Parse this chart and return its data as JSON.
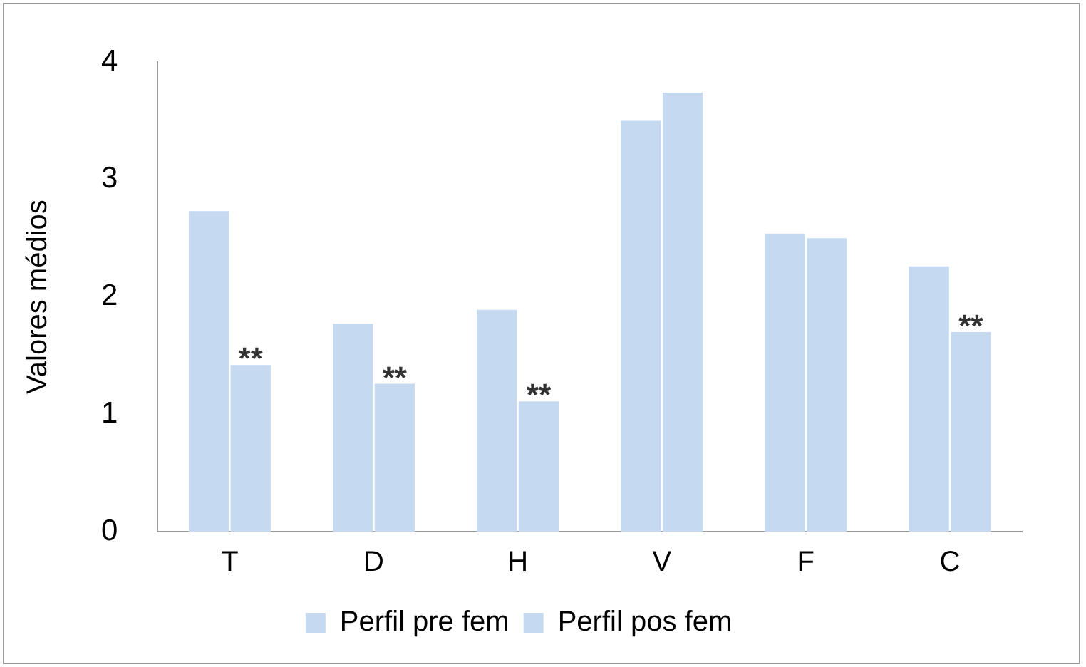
{
  "chart_data": {
    "type": "bar",
    "ylabel": "Valores médios",
    "categories": [
      "T",
      "D",
      "H",
      "V",
      "F",
      "C"
    ],
    "series": [
      {
        "name": "Perfil pre fem",
        "color": "#c5d9f1",
        "values": [
          2.73,
          1.77,
          1.89,
          3.5,
          2.54,
          2.26
        ]
      },
      {
        "name": "Perfil pos fem",
        "color": "#c5d9f1",
        "values": [
          1.42,
          1.26,
          1.11,
          3.74,
          2.5,
          1.7
        ]
      }
    ],
    "ylim": [
      0,
      4
    ],
    "yticks": [
      0,
      1,
      2,
      3,
      4
    ],
    "grid": false,
    "legend": "bottom",
    "annotations": [
      {
        "text": "**",
        "x": "T",
        "y": 1.42
      },
      {
        "text": "**",
        "x": "D",
        "y": 1.26
      },
      {
        "text": "**",
        "x": "H",
        "y": 1.11
      },
      {
        "text": "**",
        "x": "C",
        "y": 1.7
      }
    ]
  }
}
